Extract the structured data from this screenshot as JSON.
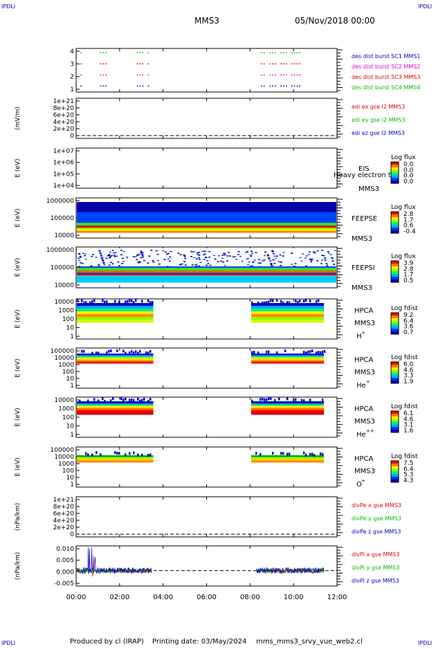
{
  "corners": {
    "left": "IPDLI",
    "right": "IPDLI"
  },
  "header": {
    "mission": "MMS3",
    "datetime": "05/Nov/2018 00:00"
  },
  "footer": {
    "produced_by": "Produced by cl (IRAP)",
    "printing_date": "Printing date: 03/May/2024",
    "script": "mms_mms3_srvy_vue_web2.cl"
  },
  "colors": {
    "blue": "#0000cc",
    "red": "#dd0000",
    "green": "#00bb00",
    "magenta": "#dd00dd",
    "black": "#000000"
  },
  "x_axis": {
    "ticks": [
      "00:00",
      "02:00",
      "04:00",
      "06:00",
      "08:00",
      "10:00",
      "12:00"
    ],
    "range_hours": [
      0,
      12
    ]
  },
  "chart_data": [
    {
      "type": "scatter",
      "panel": "burst-flags",
      "y_ticks": [
        "4",
        "3",
        "2",
        "1"
      ],
      "legend": [
        {
          "text": "des dist burst SC1 MMS1",
          "color": "#0000cc"
        },
        {
          "text": "des dist burst SC2 MMS2",
          "color": "#dd00dd"
        },
        {
          "text": "des dist burst SC3 MMS3",
          "color": "#dd0000"
        },
        {
          "text": "des dist burst SC4 MMS4",
          "color": "#00bb00"
        }
      ],
      "intervals_hours": [
        [
          0.2,
          0.3
        ],
        [
          1.1,
          1.4
        ],
        [
          2.8,
          3.1
        ],
        [
          3.3,
          3.4
        ],
        [
          8.5,
          8.7
        ],
        [
          8.9,
          9.2
        ],
        [
          9.4,
          9.7
        ],
        [
          9.9,
          10.3
        ]
      ]
    },
    {
      "type": "line",
      "panel": "edi-e",
      "ylabel": "(mV/m)",
      "y_ticks": [
        "1e+21",
        "8e+20",
        "6e+20",
        "4e+20",
        "2e+20",
        "0"
      ],
      "legend": [
        {
          "text": "edi ex gse l2 MMS3",
          "color": "#dd0000"
        },
        {
          "text": "edi ey gse l2 MMS3",
          "color": "#00bb00"
        },
        {
          "text": "edi ez gse l2 MMS3",
          "color": "#0000cc"
        }
      ]
    },
    {
      "type": "heatmap",
      "panel": "eis",
      "ylabel": "E (eV)",
      "y_ticks": [
        "1e+07",
        "1e+06",
        "1e+05",
        "1e+04"
      ],
      "side_label": "EIS",
      "side_label2": "Heavy electron to",
      "side_label3": "MMS3",
      "colorbar_title": "Log flux",
      "colorbar_ticks": [
        "0.0",
        "0.0",
        "0.0",
        "0.0"
      ]
    },
    {
      "type": "heatmap",
      "panel": "feeps-e",
      "ylabel": "E (eV)",
      "y_ticks": [
        "1000000",
        "100000",
        "10000"
      ],
      "side_label": "FEEPSE",
      "side_label3": "MMS3",
      "colorbar_title": "Log flux",
      "colorbar_ticks": [
        "2.8",
        "1.7",
        "0.6",
        "-0.4"
      ],
      "coverage_hours": [
        [
          0.0,
          12.0
        ]
      ]
    },
    {
      "type": "heatmap",
      "panel": "feeps-i",
      "ylabel": "E (eV)",
      "y_ticks": [
        "1000000",
        "100000",
        "10000"
      ],
      "side_label": "FEEPSI",
      "side_label3": "MMS3",
      "colorbar_title": "Log flux",
      "colorbar_ticks": [
        "3.9",
        "2.8",
        "1.7",
        "0.5"
      ],
      "coverage_hours": [
        [
          0.0,
          12.0
        ]
      ]
    },
    {
      "type": "heatmap",
      "panel": "hpca-h",
      "ylabel": "E (eV)",
      "y_ticks": [
        "10000",
        "1000",
        "100",
        "10",
        "1"
      ],
      "side_label": "HPCA",
      "side_label3": "MMS3",
      "species": "H",
      "species_sup": "+",
      "colorbar_title": "Log fdist",
      "colorbar_ticks": [
        "9.2",
        "6.4",
        "3.6",
        "0.7"
      ],
      "coverage_hours": [
        [
          0.0,
          3.55
        ],
        [
          8.05,
          11.4
        ]
      ]
    },
    {
      "type": "heatmap",
      "panel": "hpca-he",
      "ylabel": "E (eV)",
      "y_ticks": [
        "100000",
        "10000",
        "1000",
        "100",
        "10",
        "1"
      ],
      "side_label": "HPCA",
      "side_label3": "MMS3",
      "species": "He",
      "species_sup": "+",
      "colorbar_title": "Log fdist",
      "colorbar_ticks": [
        "6.0",
        "4.6",
        "3.3",
        "1.9"
      ],
      "coverage_hours": [
        [
          0.0,
          3.55
        ],
        [
          8.05,
          11.4
        ]
      ]
    },
    {
      "type": "heatmap",
      "panel": "hpca-hepp",
      "ylabel": "E (eV)",
      "y_ticks": [
        "10000",
        "1000",
        "100",
        "10",
        "1"
      ],
      "side_label": "HPCA",
      "side_label3": "MMS3",
      "species": "He",
      "species_sup": "++",
      "colorbar_title": "Log fdist",
      "colorbar_ticks": [
        "6.1",
        "4.6",
        "3.1",
        "1.6"
      ],
      "coverage_hours": [
        [
          0.0,
          3.55
        ],
        [
          8.05,
          11.4
        ]
      ]
    },
    {
      "type": "heatmap",
      "panel": "hpca-o",
      "ylabel": "E (eV)",
      "y_ticks": [
        "100000",
        "10000",
        "1000",
        "100",
        "10",
        "1"
      ],
      "side_label": "HPCA",
      "side_label3": "MMS3",
      "species": "O",
      "species_sup": "+",
      "colorbar_title": "Log fdist",
      "colorbar_ticks": [
        "7.5",
        "6.4",
        "5.3",
        "4.3"
      ],
      "coverage_hours": [
        [
          0.0,
          3.55
        ],
        [
          8.05,
          11.4
        ]
      ]
    },
    {
      "type": "line",
      "panel": "divpe",
      "ylabel": "(nPa/km)",
      "y_ticks": [
        "1e+21",
        "8e+20",
        "6e+20",
        "4e+20",
        "2e+20",
        "0"
      ],
      "legend": [
        {
          "text": "divPe x gse MMS3",
          "color": "#dd0000"
        },
        {
          "text": "divPe y gse MMS3",
          "color": "#00bb00"
        },
        {
          "text": "divPe z gse MMS3",
          "color": "#0000cc"
        }
      ]
    },
    {
      "type": "line",
      "panel": "divpi",
      "ylabel": "(nPa/km)",
      "y_ticks": [
        "0.010",
        "0.005",
        "0.000",
        "-0.005"
      ],
      "ylim": [
        -0.0075,
        0.012
      ],
      "legend": [
        {
          "text": "divPi x gse MMS3",
          "color": "#dd0000"
        },
        {
          "text": "divPi y gse MMS3",
          "color": "#00bb00"
        },
        {
          "text": "divPi z gse MMS3",
          "color": "#0000cc"
        }
      ],
      "coverage_hours": [
        [
          0.0,
          3.5
        ],
        [
          8.3,
          11.4
        ]
      ]
    }
  ]
}
